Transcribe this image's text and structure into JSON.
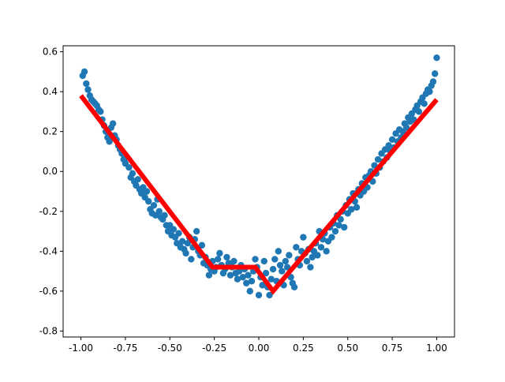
{
  "chart_data": {
    "type": "scatter",
    "title": "",
    "xlabel": "",
    "ylabel": "",
    "xlim": [
      -1.1,
      1.1
    ],
    "ylim": [
      -0.83,
      0.63
    ],
    "x_ticks": [
      "-1.00",
      "-0.75",
      "-0.50",
      "-0.25",
      "0.00",
      "0.25",
      "0.50",
      "0.75",
      "1.00"
    ],
    "y_ticks": [
      "-0.8",
      "-0.6",
      "-0.4",
      "-0.2",
      "0.0",
      "0.2",
      "0.4",
      "0.6"
    ],
    "grid": false,
    "legend": "none",
    "series": [
      {
        "kind": "scatter",
        "color": "#1f77b4",
        "points": [
          [
            -0.99,
            0.48
          ],
          [
            -0.98,
            0.5
          ],
          [
            -0.97,
            0.44
          ],
          [
            -0.96,
            0.41
          ],
          [
            -0.95,
            0.38
          ],
          [
            -0.94,
            0.36
          ],
          [
            -0.93,
            0.35
          ],
          [
            -0.92,
            0.34
          ],
          [
            -0.91,
            0.33
          ],
          [
            -0.9,
            0.31
          ],
          [
            -0.89,
            0.3
          ],
          [
            -0.88,
            0.26
          ],
          [
            -0.87,
            0.23
          ],
          [
            -0.86,
            0.2
          ],
          [
            -0.85,
            0.17
          ],
          [
            -0.84,
            0.15
          ],
          [
            -0.83,
            0.22
          ],
          [
            -0.82,
            0.24
          ],
          [
            -0.81,
            0.18
          ],
          [
            -0.8,
            0.16
          ],
          [
            -0.79,
            0.13
          ],
          [
            -0.78,
            0.11
          ],
          [
            -0.77,
            0.09
          ],
          [
            -0.76,
            0.06
          ],
          [
            -0.75,
            0.04
          ],
          [
            -0.74,
            0.07
          ],
          [
            -0.73,
            0.02
          ],
          [
            -0.72,
            -0.03
          ],
          [
            -0.71,
            -0.01
          ],
          [
            -0.7,
            -0.05
          ],
          [
            -0.69,
            -0.07
          ],
          [
            -0.68,
            -0.04
          ],
          [
            -0.67,
            -0.09
          ],
          [
            -0.66,
            -0.11
          ],
          [
            -0.65,
            -0.08
          ],
          [
            -0.64,
            -0.13
          ],
          [
            -0.63,
            -0.1
          ],
          [
            -0.62,
            -0.15
          ],
          [
            -0.61,
            -0.19
          ],
          [
            -0.6,
            -0.21
          ],
          [
            -0.59,
            -0.17
          ],
          [
            -0.58,
            -0.22
          ],
          [
            -0.57,
            -0.14
          ],
          [
            -0.56,
            -0.2
          ],
          [
            -0.55,
            -0.23
          ],
          [
            -0.54,
            -0.24
          ],
          [
            -0.53,
            -0.22
          ],
          [
            -0.52,
            -0.27
          ],
          [
            -0.51,
            -0.3
          ],
          [
            -0.5,
            -0.27
          ],
          [
            -0.49,
            -0.32
          ],
          [
            -0.48,
            -0.29
          ],
          [
            -0.47,
            -0.33
          ],
          [
            -0.46,
            -0.36
          ],
          [
            -0.45,
            -0.31
          ],
          [
            -0.44,
            -0.38
          ],
          [
            -0.43,
            -0.35
          ],
          [
            -0.42,
            -0.39
          ],
          [
            -0.41,
            -0.41
          ],
          [
            -0.4,
            -0.36
          ],
          [
            -0.39,
            -0.33
          ],
          [
            -0.38,
            -0.44
          ],
          [
            -0.37,
            -0.38
          ],
          [
            -0.36,
            -0.34
          ],
          [
            -0.35,
            -0.3
          ],
          [
            -0.34,
            -0.4
          ],
          [
            -0.33,
            -0.42
          ],
          [
            -0.32,
            -0.37
          ],
          [
            -0.31,
            -0.46
          ],
          [
            -0.3,
            -0.43
          ],
          [
            -0.29,
            -0.47
          ],
          [
            -0.28,
            -0.52
          ],
          [
            -0.27,
            -0.49
          ],
          [
            -0.26,
            -0.45
          ],
          [
            -0.25,
            -0.5
          ],
          [
            -0.24,
            -0.48
          ],
          [
            -0.23,
            -0.44
          ],
          [
            -0.22,
            -0.41
          ],
          [
            -0.21,
            -0.47
          ],
          [
            -0.2,
            -0.51
          ],
          [
            -0.19,
            -0.49
          ],
          [
            -0.18,
            -0.43
          ],
          [
            -0.17,
            -0.46
          ],
          [
            -0.16,
            -0.52
          ],
          [
            -0.15,
            -0.48
          ],
          [
            -0.14,
            -0.45
          ],
          [
            -0.13,
            -0.51
          ],
          [
            -0.12,
            -0.54
          ],
          [
            -0.11,
            -0.5
          ],
          [
            -0.1,
            -0.47
          ],
          [
            -0.09,
            -0.53
          ],
          [
            -0.08,
            -0.49
          ],
          [
            -0.07,
            -0.56
          ],
          [
            -0.06,
            -0.52
          ],
          [
            -0.05,
            -0.6
          ],
          [
            -0.04,
            -0.55
          ],
          [
            -0.03,
            -0.5
          ],
          [
            -0.02,
            -0.44
          ],
          [
            -0.01,
            -0.48
          ],
          [
            0.0,
            -0.62
          ],
          [
            0.01,
            -0.53
          ],
          [
            0.02,
            -0.57
          ],
          [
            0.03,
            -0.45
          ],
          [
            0.04,
            -0.51
          ],
          [
            0.05,
            -0.58
          ],
          [
            0.06,
            -0.62
          ],
          [
            0.07,
            -0.54
          ],
          [
            0.08,
            -0.49
          ],
          [
            0.09,
            -0.44
          ],
          [
            0.1,
            -0.55
          ],
          [
            0.11,
            -0.4
          ],
          [
            0.12,
            -0.47
          ],
          [
            0.13,
            -0.5
          ],
          [
            0.14,
            -0.57
          ],
          [
            0.15,
            -0.45
          ],
          [
            0.16,
            -0.48
          ],
          [
            0.17,
            -0.42
          ],
          [
            0.18,
            -0.53
          ],
          [
            0.19,
            -0.56
          ],
          [
            0.2,
            -0.58
          ],
          [
            0.21,
            -0.38
          ],
          [
            0.22,
            -0.44
          ],
          [
            0.23,
            -0.47
          ],
          [
            0.24,
            -0.4
          ],
          [
            0.25,
            -0.33
          ],
          [
            0.26,
            -0.41
          ],
          [
            0.27,
            -0.45
          ],
          [
            0.28,
            -0.39
          ],
          [
            0.29,
            -0.48
          ],
          [
            0.3,
            -0.43
          ],
          [
            0.31,
            -0.4
          ],
          [
            0.32,
            -0.36
          ],
          [
            0.33,
            -0.42
          ],
          [
            0.34,
            -0.3
          ],
          [
            0.35,
            -0.38
          ],
          [
            0.36,
            -0.34
          ],
          [
            0.37,
            -0.31
          ],
          [
            0.38,
            -0.4
          ],
          [
            0.39,
            -0.35
          ],
          [
            0.4,
            -0.28
          ],
          [
            0.41,
            -0.33
          ],
          [
            0.42,
            -0.26
          ],
          [
            0.43,
            -0.3
          ],
          [
            0.44,
            -0.22
          ],
          [
            0.45,
            -0.27
          ],
          [
            0.46,
            -0.24
          ],
          [
            0.47,
            -0.2
          ],
          [
            0.48,
            -0.28
          ],
          [
            0.49,
            -0.17
          ],
          [
            0.5,
            -0.21
          ],
          [
            0.51,
            -0.14
          ],
          [
            0.52,
            -0.19
          ],
          [
            0.53,
            -0.11
          ],
          [
            0.54,
            -0.15
          ],
          [
            0.55,
            -0.18
          ],
          [
            0.56,
            -0.09
          ],
          [
            0.57,
            -0.12
          ],
          [
            0.58,
            -0.06
          ],
          [
            0.59,
            -0.1
          ],
          [
            0.6,
            -0.03
          ],
          [
            0.61,
            -0.08
          ],
          [
            0.62,
            -0.02
          ],
          [
            0.63,
            0.0
          ],
          [
            0.64,
            -0.05
          ],
          [
            0.65,
            0.03
          ],
          [
            0.66,
            -0.01
          ],
          [
            0.67,
            0.06
          ],
          [
            0.68,
            0.02
          ],
          [
            0.69,
            0.09
          ],
          [
            0.7,
            0.05
          ],
          [
            0.71,
            0.11
          ],
          [
            0.72,
            0.07
          ],
          [
            0.73,
            0.13
          ],
          [
            0.74,
            0.1
          ],
          [
            0.75,
            0.16
          ],
          [
            0.76,
            0.12
          ],
          [
            0.77,
            0.19
          ],
          [
            0.78,
            0.15
          ],
          [
            0.79,
            0.21
          ],
          [
            0.8,
            0.17
          ],
          [
            0.81,
            0.2
          ],
          [
            0.82,
            0.24
          ],
          [
            0.83,
            0.22
          ],
          [
            0.84,
            0.27
          ],
          [
            0.85,
            0.25
          ],
          [
            0.86,
            0.29
          ],
          [
            0.87,
            0.26
          ],
          [
            0.88,
            0.31
          ],
          [
            0.89,
            0.33
          ],
          [
            0.9,
            0.3
          ],
          [
            0.91,
            0.35
          ],
          [
            0.92,
            0.37
          ],
          [
            0.93,
            0.34
          ],
          [
            0.94,
            0.39
          ],
          [
            0.95,
            0.41
          ],
          [
            0.96,
            0.4
          ],
          [
            0.97,
            0.43
          ],
          [
            0.98,
            0.45
          ],
          [
            0.99,
            0.49
          ],
          [
            1.0,
            0.57
          ]
        ]
      },
      {
        "kind": "line",
        "color": "#ff0000",
        "x": [
          -1.0,
          -0.26,
          -0.02,
          0.08,
          1.0
        ],
        "y": [
          0.38,
          -0.48,
          -0.48,
          -0.6,
          0.36
        ]
      }
    ]
  }
}
